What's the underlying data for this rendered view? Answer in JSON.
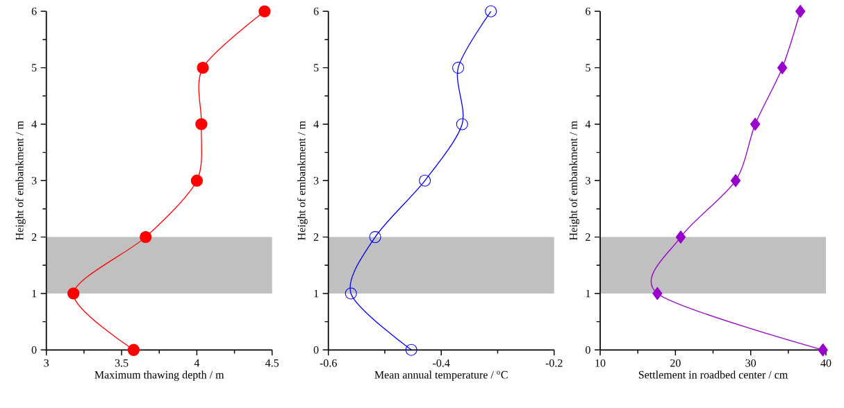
{
  "chart_data": [
    {
      "type": "line",
      "xlabel": "Maximum thawing depth / m",
      "ylabel": "Height of embankment / m",
      "xlim": [
        3,
        4.5
      ],
      "xticks": [
        3,
        3.5,
        4,
        4.5
      ],
      "ylim": [
        0,
        6
      ],
      "yticks": [
        0,
        1,
        2,
        3,
        4,
        5,
        6
      ],
      "marker": "circle",
      "line_style": "solid",
      "bands": [
        {
          "axis": "y",
          "from": 1,
          "to": 2,
          "color": "#c0c0c0"
        }
      ],
      "series": [
        {
          "color": "#ff0000",
          "x": [
            3.58,
            3.18,
            3.66,
            4.0,
            4.03,
            4.04,
            4.45
          ],
          "values": [
            0,
            1,
            2,
            3,
            4,
            5,
            6
          ]
        }
      ]
    },
    {
      "type": "line",
      "xlabel": "Mean annual temperature / $^{o}$C",
      "ylabel": "Height of embankment / m",
      "xlim": [
        -0.6,
        -0.2
      ],
      "xticks": [
        -0.6,
        -0.4,
        -0.2
      ],
      "ylim": [
        0,
        6
      ],
      "yticks": [
        0,
        1,
        2,
        3,
        4,
        5,
        6
      ],
      "marker": "circle",
      "line_style": "solid",
      "bands": [
        {
          "axis": "y",
          "from": 1,
          "to": 2,
          "color": "#c0c0c0"
        }
      ],
      "series": [
        {
          "color": "#0000ff",
          "x": [
            -0.453,
            -0.56,
            -0.517,
            -0.429,
            -0.363,
            -0.37,
            -0.312
          ],
          "values": [
            0,
            1,
            2,
            3,
            4,
            5,
            6
          ]
        }
      ]
    },
    {
      "type": "line",
      "xlabel": "Settlement in roadbed center / cm",
      "ylabel": "Height of embankment / m",
      "xlim": [
        10,
        40
      ],
      "xticks": [
        10,
        20,
        30,
        40
      ],
      "ylim": [
        0,
        6
      ],
      "yticks": [
        0,
        1,
        2,
        3,
        4,
        5,
        6
      ],
      "marker": "diamond",
      "line_style": "solid",
      "bands": [
        {
          "axis": "y",
          "from": 1,
          "to": 2,
          "color": "#c0c0c0"
        }
      ],
      "series": [
        {
          "color": "#9900cc",
          "x": [
            39.6,
            17.6,
            20.7,
            28.0,
            30.6,
            34.2,
            36.6
          ],
          "values": [
            0,
            1,
            2,
            3,
            4,
            5,
            6
          ]
        }
      ]
    }
  ]
}
